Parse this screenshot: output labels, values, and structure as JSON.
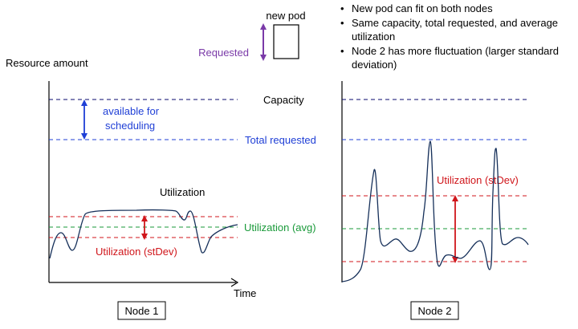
{
  "labels": {
    "new_pod": "new pod",
    "requested": "Requested",
    "resource_amount": "Resource amount",
    "capacity": "Capacity",
    "available_for_scheduling_line1": "available for",
    "available_for_scheduling_line2": "scheduling",
    "total_requested": "Total requested",
    "utilization": "Utilization",
    "utilization_avg": "Utilization (avg)",
    "utilization_stdev_node1": "Utilization (stDev)",
    "utilization_stdev_node2": "Utilization (stDev)",
    "time": "Time",
    "node1": "Node 1",
    "node2": "Node 2"
  },
  "bullets": [
    "New pod can fit on both nodes",
    "Same capacity, total requested, and average utilization",
    "Node 2 has more fluctuation (larger standard deviation)"
  ],
  "colors": {
    "capacity_line": "#0a0a6e",
    "total_requested_line": "#1f3fd6",
    "total_requested_text": "#1f3fd6",
    "available_text": "#1f3fd6",
    "utilization_avg_line": "#1a9a3a",
    "utilization_avg_text": "#1a9a3a",
    "stdev_lines": "#d0161b",
    "stdev_text": "#d0161b",
    "requested_text": "#7a3aa8",
    "curve": "#16305a"
  }
}
